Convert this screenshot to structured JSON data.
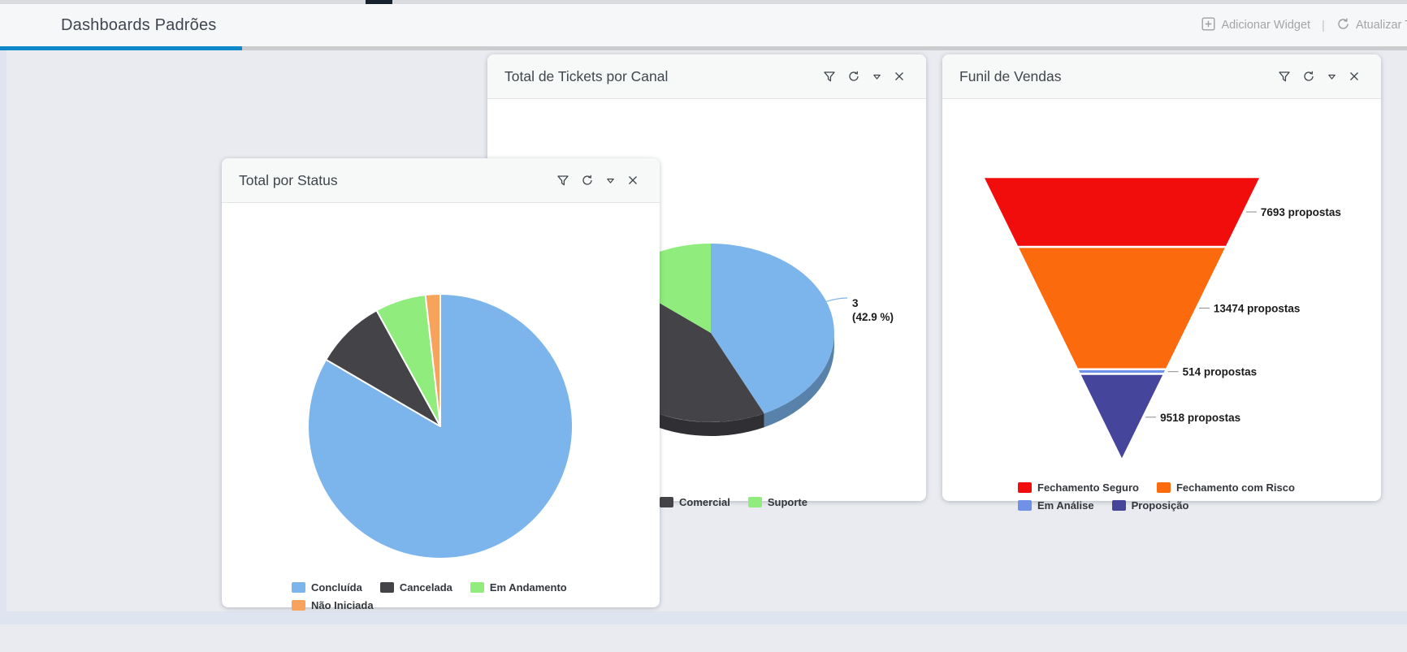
{
  "header": {
    "title": "Dashboards Padrões",
    "separator": "|",
    "actions": {
      "add_widget": "Adicionar Widget",
      "refresh_all": "Atualizar T"
    },
    "accent_color": "#0d87c8"
  },
  "widgets": [
    {
      "id": "status",
      "title": "Total por Status"
    },
    {
      "id": "tickets",
      "title": "Total de Tickets por Canal"
    },
    {
      "id": "funil",
      "title": "Funil de Vendas"
    }
  ],
  "widget_tools": [
    "filter",
    "refresh",
    "collapse",
    "close"
  ],
  "chart_data": [
    {
      "widget": "Total por Status",
      "type": "pie",
      "slices": [
        {
          "label": "Concluída",
          "color": "#7cb5ec",
          "percent": 83.4
        },
        {
          "label": "Cancelada",
          "color": "#434348",
          "percent": 8.6
        },
        {
          "label": "Em Andamento",
          "color": "#90ed7d",
          "percent": 6.2
        },
        {
          "label": "Não Iniciada",
          "color": "#f7a35c",
          "percent": 1.8
        }
      ],
      "legend_position": "bottom"
    },
    {
      "widget": "Total de Tickets por Canal",
      "type": "pie",
      "style": "3d",
      "slices": [
        {
          "label": "",
          "color": "#7cb5ec",
          "percent": 42.9,
          "value": 3,
          "callout_line1": "3",
          "callout_line2": "(42.9 %)"
        },
        {
          "label": "Comercial",
          "color": "#434348",
          "percent": 42.9
        },
        {
          "label": "Suporte",
          "color": "#90ed7d",
          "percent": 14.2
        }
      ],
      "visible_legend": [
        "Comercial",
        "Suporte"
      ],
      "legend_position": "bottom"
    },
    {
      "widget": "Funil de Vendas",
      "type": "funnel",
      "segments": [
        {
          "label": "Fechamento Seguro",
          "color": "#f20d0d",
          "value": 7693,
          "annotation": "7693 propostas"
        },
        {
          "label": "Fechamento com Risco",
          "color": "#fb6a0d",
          "value": 13474,
          "annotation": "13474 propostas"
        },
        {
          "label": "Em Análise",
          "color": "#6f92e8",
          "value": 514,
          "annotation": "514 propostas"
        },
        {
          "label": "Proposição",
          "color": "#45459b",
          "value": 9518,
          "annotation": "9518 propostas"
        }
      ],
      "legend_position": "bottom"
    }
  ]
}
